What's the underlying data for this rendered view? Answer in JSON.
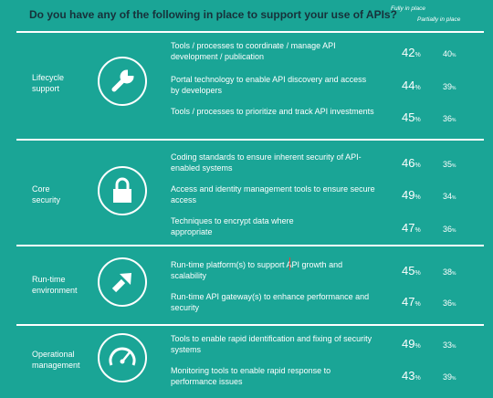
{
  "title": "Do you have any of the following in place to support your use of APIs?",
  "legend": {
    "full": "Fully in place",
    "partial": "Partially in place"
  },
  "colors": {
    "background": "#1aa596",
    "title": "#17313a",
    "text": "#ffffff"
  },
  "groups": [
    {
      "label": "Lifecycle support",
      "icon": "wrench-icon"
    },
    {
      "label": "Core security",
      "icon": "lock-icon"
    },
    {
      "label": "Run-time environment",
      "icon": "arrow-up-right-icon"
    },
    {
      "label": "Operational management",
      "icon": "speedometer-icon"
    }
  ],
  "chart_data": {
    "type": "table",
    "title": "Do you have any of the following in place to support your use of APIs?",
    "series": [
      {
        "name": "Fully in place",
        "values": [
          42,
          44,
          45,
          46,
          49,
          47,
          45,
          47,
          49,
          43
        ]
      },
      {
        "name": "Partially in place",
        "values": [
          40,
          39,
          36,
          35,
          34,
          36,
          38,
          36,
          33,
          39
        ]
      }
    ],
    "categories": [
      "Tools / processes to coordinate / manage API development / publication",
      "Portal technology to enable API discovery and access by developers",
      "Tools / processes to prioritize and track API investments",
      "Coding standards to ensure inherent security of API-enabled systems",
      "Access and identity management tools to ensure secure access",
      "Techniques to encrypt data where appropriate",
      "Run-time platform(s) to support API growth and scalability",
      "Run-time API gateway(s) to enhance performance and security",
      "Tools to enable rapid identification and fixing of security systems",
      "Monitoring tools to enable rapid response to performance issues"
    ],
    "groups": [
      "Lifecycle support",
      "Lifecycle support",
      "Lifecycle support",
      "Core security",
      "Core security",
      "Core security",
      "Run-time environment",
      "Run-time environment",
      "Operational management",
      "Operational management"
    ],
    "unit": "%"
  }
}
